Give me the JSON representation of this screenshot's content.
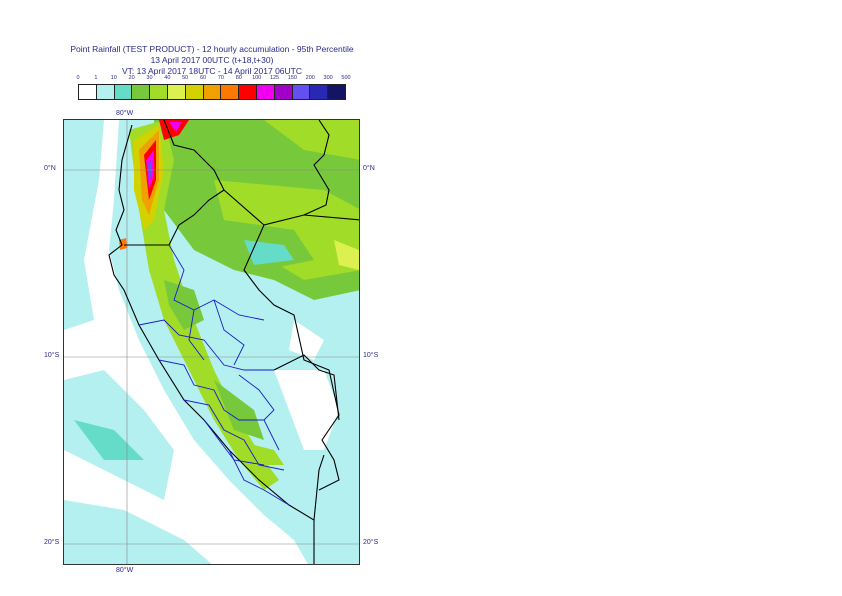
{
  "title": {
    "line1": "Point Rainfall (TEST PRODUCT) - 12 hourly accumulation - 95th Percentile",
    "line2": "13 April 2017 00UTC (t+18,t+30)",
    "line3": "VT: 13 April 2017 18UTC - 14 April 2017 06UTC"
  },
  "legend": {
    "ticks": [
      "0",
      "1",
      "10",
      "20",
      "30",
      "40",
      "50",
      "60",
      "70",
      "80",
      "100",
      "125",
      "150",
      "200",
      "300",
      "500"
    ],
    "colors": [
      "#ffffff",
      "#b4f0f0",
      "#64dcc8",
      "#78c83c",
      "#a0dc28",
      "#dcf050",
      "#d2d200",
      "#f0a000",
      "#ff7800",
      "#ff0000",
      "#f000f0",
      "#a000c8",
      "#6450f0",
      "#2828b4",
      "#141464"
    ]
  },
  "map": {
    "lat_labels": [
      "0°N",
      "10°S",
      "20°S"
    ],
    "lon_labels_top": [
      "80°W"
    ],
    "lon_labels_bottom": [
      "80°W"
    ]
  }
}
